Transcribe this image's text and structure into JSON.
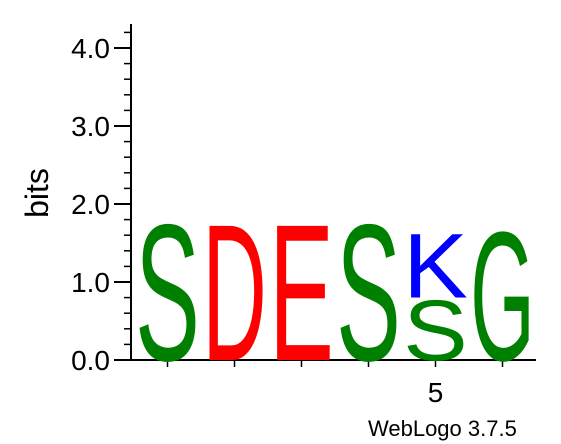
{
  "chart_data": {
    "type": "sequence-logo",
    "ylabel": "bits",
    "ylim": [
      0,
      4.3
    ],
    "y_ticks": [
      "0.0",
      "1.0",
      "2.0",
      "3.0",
      "4.0"
    ],
    "x_tick_labels": [
      {
        "position": 5,
        "label": "5"
      }
    ],
    "colors": {
      "S": "#008000",
      "D": "#ff0000",
      "E": "#ff0000",
      "K": "#0000ff",
      "G": "#008000"
    },
    "positions": [
      {
        "position": 1,
        "letters": [
          {
            "letter": "S",
            "bits": 1.8
          }
        ]
      },
      {
        "position": 2,
        "letters": [
          {
            "letter": "D",
            "bits": 1.8
          }
        ]
      },
      {
        "position": 3,
        "letters": [
          {
            "letter": "E",
            "bits": 1.8
          }
        ]
      },
      {
        "position": 4,
        "letters": [
          {
            "letter": "S",
            "bits": 1.8
          }
        ]
      },
      {
        "position": 5,
        "letters": [
          {
            "letter": "S",
            "bits": 0.8
          },
          {
            "letter": "K",
            "bits": 0.85
          }
        ]
      },
      {
        "position": 6,
        "letters": [
          {
            "letter": "G",
            "bits": 1.7
          }
        ]
      }
    ]
  },
  "credit": "WebLogo 3.7.5"
}
